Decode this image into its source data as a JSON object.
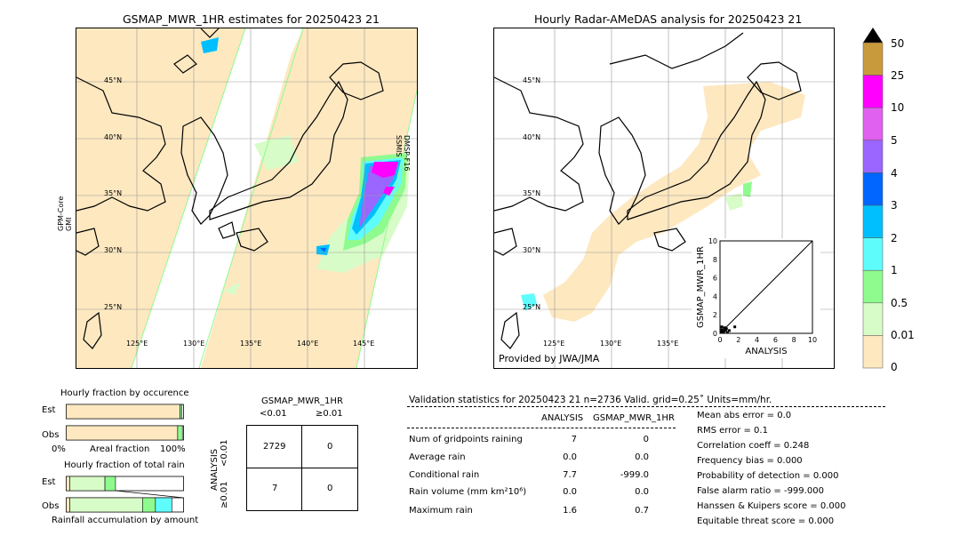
{
  "left_map": {
    "title": "GSMAP_MWR_1HR estimates for 20250423 21",
    "sensor_right": [
      "DMSP-F16",
      "SSMIS"
    ],
    "sensor_left": [
      "GPM-Core",
      "GMI"
    ],
    "lat_labels": [
      "45°N",
      "40°N",
      "35°N",
      "30°N",
      "25°N"
    ],
    "lon_labels": [
      "125°E",
      "130°E",
      "135°E",
      "140°E",
      "145°E"
    ]
  },
  "right_map": {
    "title": "Hourly Radar-AMeDAS analysis for 20250423 21",
    "credit": "Provided by JWA/JMA",
    "lat_labels": [
      "45°N",
      "40°N",
      "35°N",
      "30°N",
      "25°N"
    ],
    "lon_labels": [
      "125°E",
      "130°E",
      "135°E"
    ]
  },
  "colorbar": {
    "labels": [
      "50",
      "25",
      "10",
      "5",
      "4",
      "3",
      "2",
      "1",
      "0.5",
      "0.01",
      "0"
    ],
    "colors": [
      "#c99a3c",
      "#ff00ff",
      "#e060f0",
      "#9a66ff",
      "#0066ff",
      "#00bfff",
      "#5ffcfc",
      "#8ffb8f",
      "#d8fcc8",
      "#fde8c0"
    ]
  },
  "chart_data": [
    {
      "type": "scatter",
      "xlabel": "ANALYSIS",
      "ylabel": "GSMAP_MWR_1HR",
      "xlim": [
        0,
        10
      ],
      "ylim": [
        0,
        10
      ],
      "xticks": [
        "0",
        "2",
        "4",
        "6",
        "8",
        "10"
      ],
      "yticks": [
        "0",
        "2",
        "4",
        "6",
        "8",
        "10"
      ],
      "points": [
        [
          0.1,
          0.2
        ],
        [
          0.2,
          0.4
        ],
        [
          0.3,
          0.3
        ],
        [
          0.5,
          0.6
        ],
        [
          0.1,
          0.1
        ],
        [
          0.4,
          0.2
        ],
        [
          0.7,
          0.5
        ],
        [
          0.2,
          0.7
        ],
        [
          0.6,
          0.3
        ],
        [
          0.3,
          0.1
        ],
        [
          1.0,
          0.3
        ],
        [
          1.6,
          0.7
        ],
        [
          0.8,
          0.1
        ]
      ]
    },
    {
      "type": "bar",
      "title": "Hourly fraction by occurence",
      "categories": [
        "Est",
        "Obs"
      ],
      "xlabel_left": "0%",
      "xlabel_mid": "Areal fraction",
      "xlabel_right": "100%",
      "series": [
        {
          "values": [
            0.97,
            0.95
          ]
        },
        {
          "values": [
            0.015,
            0.04
          ]
        }
      ]
    },
    {
      "type": "bar",
      "title": "Hourly fraction of total rain",
      "categories": [
        "Est",
        "Obs"
      ],
      "xlabel": "Rainfall accumulation by amount",
      "series": [
        {
          "values": [
            0.03,
            0.03
          ]
        },
        {
          "values": [
            0.3,
            0.62
          ]
        },
        {
          "values": [
            0.09,
            0.11
          ]
        },
        {
          "values": [
            0,
            0.14
          ]
        }
      ]
    },
    {
      "type": "table",
      "title": "GSMAP_MWR_1HR",
      "columns": [
        "<0.01",
        "≥0.01"
      ],
      "row_axis": "ANALYSIS",
      "rows": [
        {
          "label": "<0.01",
          "values": [
            "2729",
            "0"
          ]
        },
        {
          "label": "≥0.01",
          "values": [
            "7",
            "0"
          ]
        }
      ]
    }
  ],
  "validation": {
    "header": "Validation statistics for 20250423 21  n=2736 Valid. grid=0.25˚ Units=mm/hr.",
    "col_analysis": "ANALYSIS",
    "col_gsmap": "GSMAP_MWR_1HR",
    "rows": [
      {
        "label": "Num of gridpoints raining",
        "analysis": "7",
        "gsmap": "0"
      },
      {
        "label": "Average rain",
        "analysis": "0.0",
        "gsmap": "0.0"
      },
      {
        "label": "Conditional rain",
        "analysis": "7.7",
        "gsmap": "-999.0"
      },
      {
        "label": "Rain volume (mm km²10⁶)",
        "analysis": "0.0",
        "gsmap": "0.0"
      },
      {
        "label": "Maximum rain",
        "analysis": "1.6",
        "gsmap": "0.7"
      }
    ],
    "scores": [
      "Mean abs error =    0.0",
      "RMS error =    0.1",
      "Correlation coeff =  0.248",
      "Frequency bias =  0.000",
      "Probability of detection =  0.000",
      "False alarm ratio = -999.000",
      "Hanssen & Kuipers score =  0.000",
      "Equitable threat score =  0.000"
    ]
  }
}
